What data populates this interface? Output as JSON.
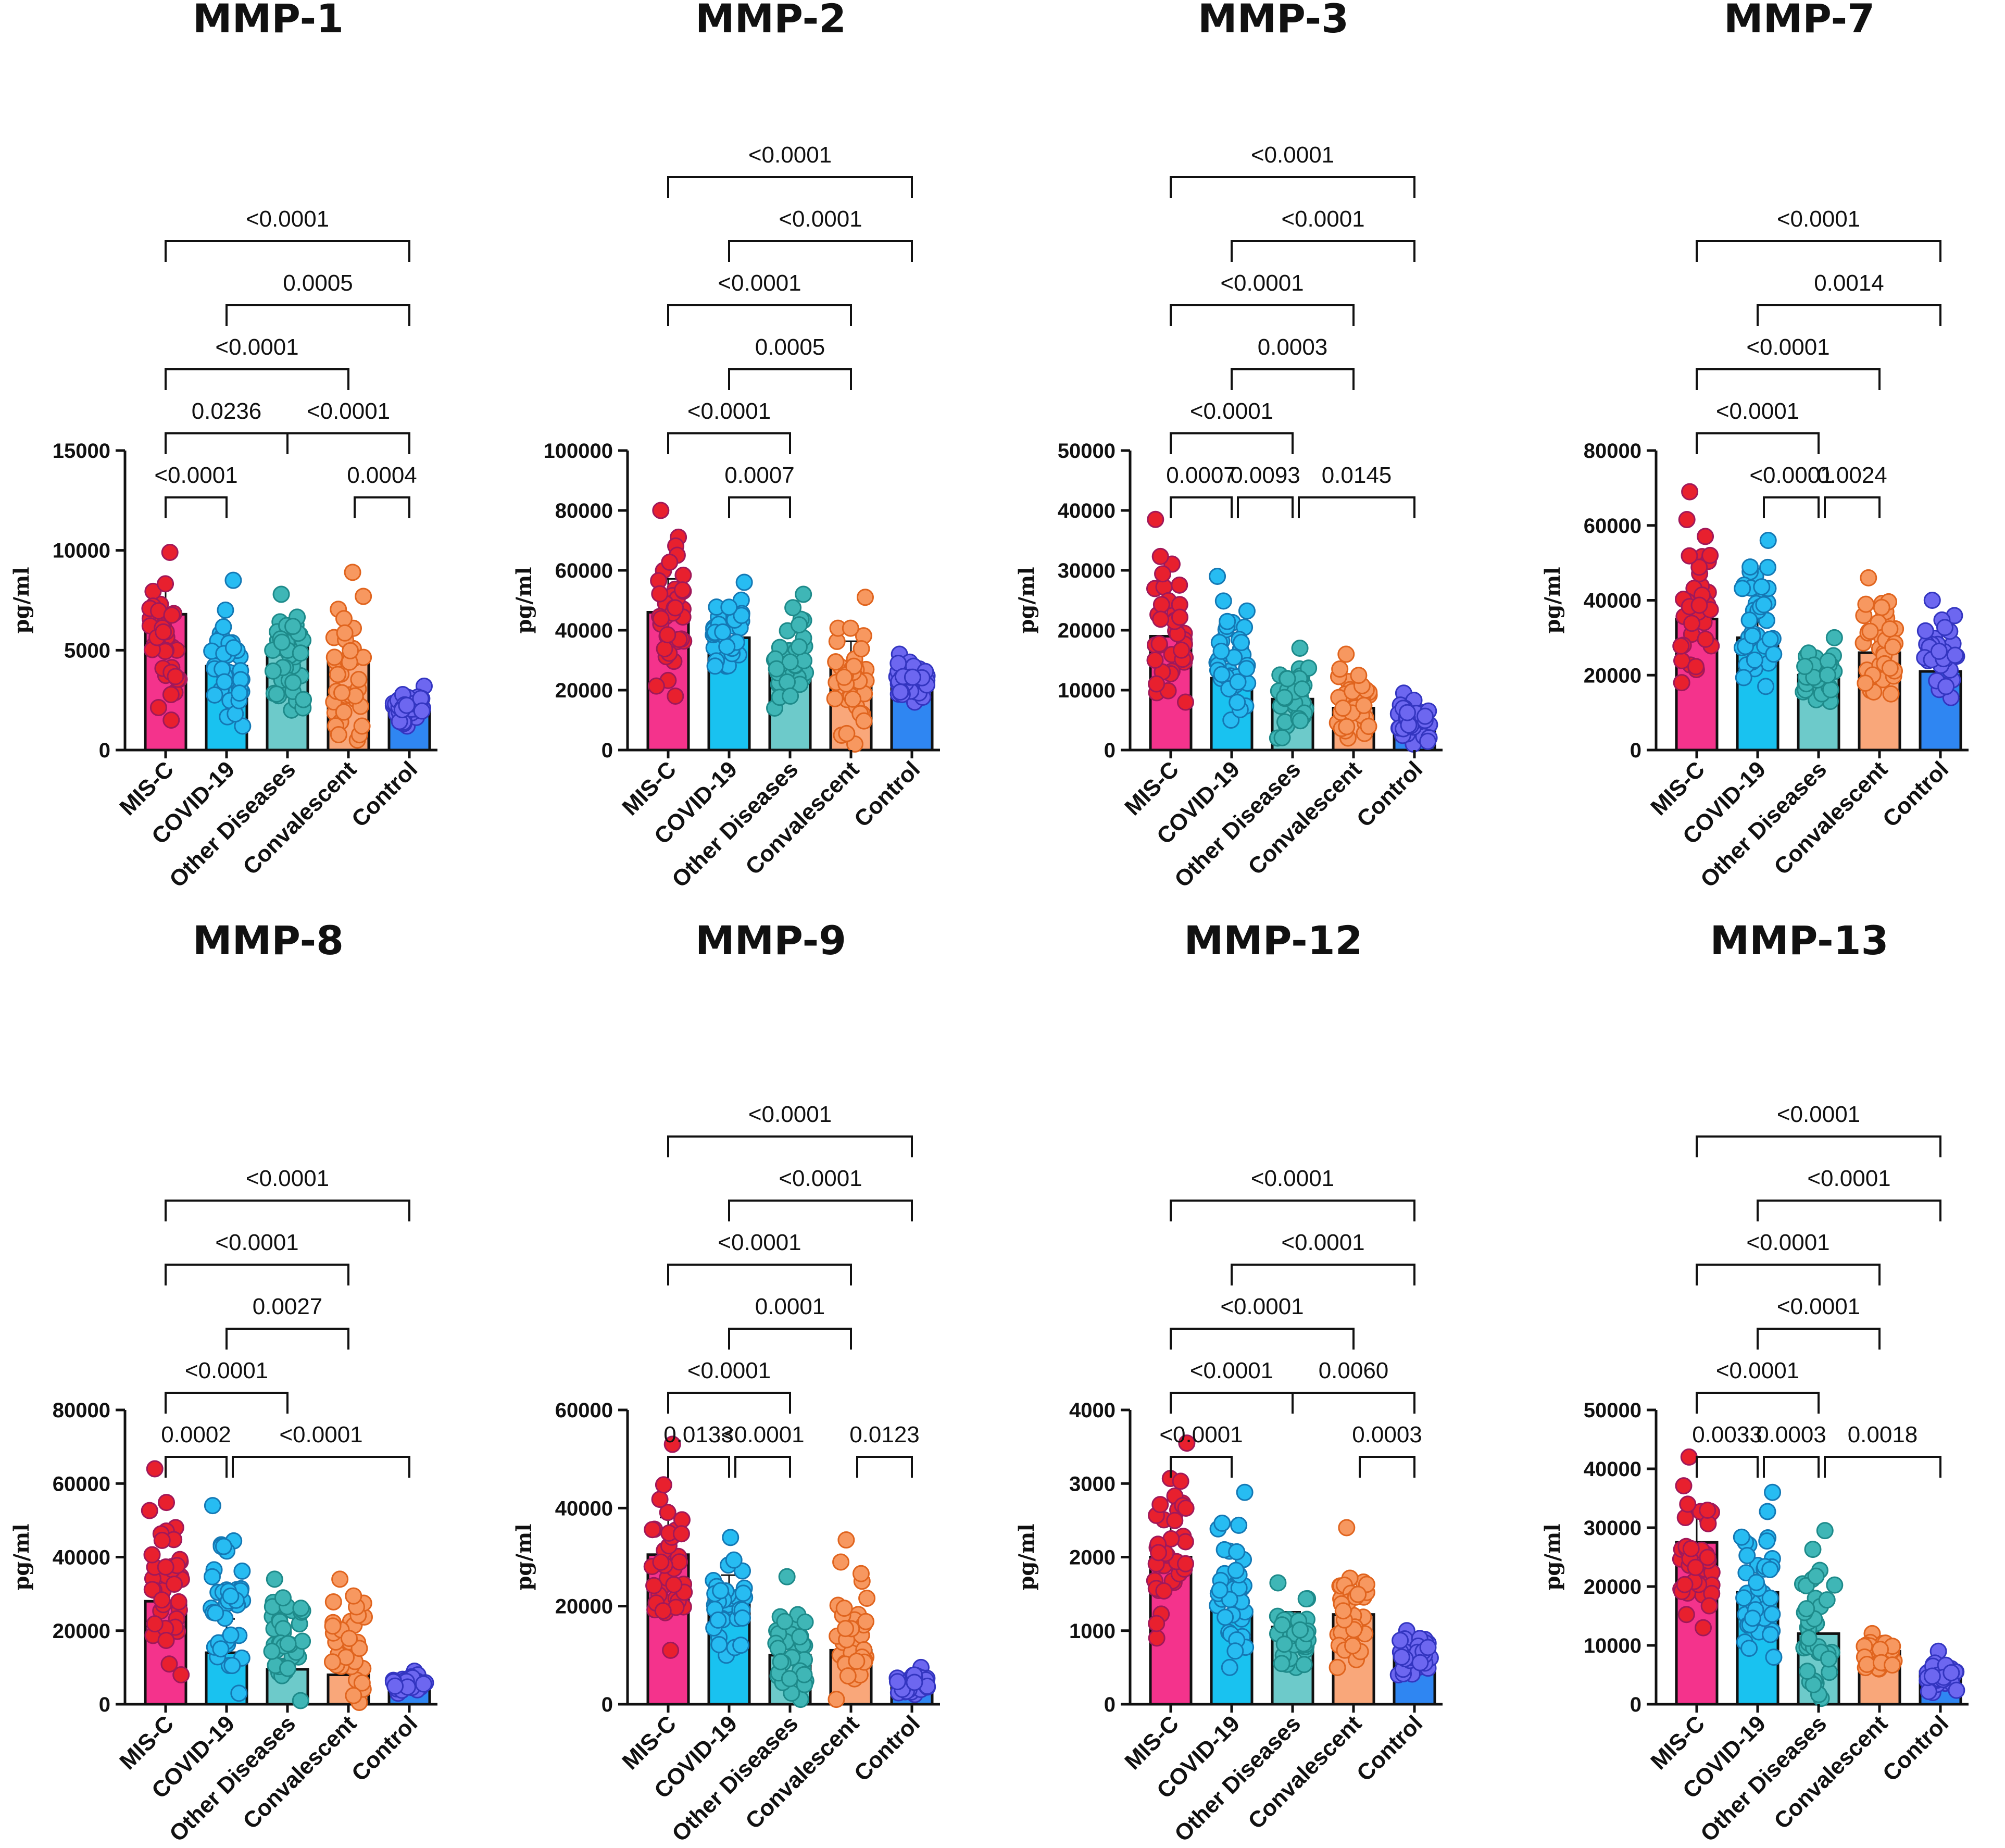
{
  "colors": {
    "MIS-C": {
      "bar": "#F4338C",
      "point": "#E8202E",
      "edge": "#A0185A"
    },
    "COVID-19": {
      "bar": "#19C2F0",
      "point": "#27BCF2",
      "edge": "#1478B4"
    },
    "Other Diseases": {
      "bar": "#6DCACA",
      "point": "#3FB6B6",
      "edge": "#1E8A8A"
    },
    "Convalescent": {
      "bar": "#F9A77A",
      "point": "#F79860",
      "edge": "#E0641E"
    },
    "Control": {
      "bar": "#2F86F2",
      "point": "#6D67F0",
      "edge": "#3335C0"
    }
  },
  "chart_data": [
    {
      "type": "bar",
      "title": "MMP-1",
      "ylabel": "pg/ml",
      "categories": [
        "MIS-C",
        "COVID-19",
        "Other Diseases",
        "Convalescent",
        "Control"
      ],
      "values": [
        6800,
        4200,
        5200,
        4400,
        2000
      ],
      "ranges": [
        [
          1500,
          9900
        ],
        [
          1200,
          8500
        ],
        [
          2000,
          7800
        ],
        [
          500,
          8900
        ],
        [
          1200,
          3200
        ]
      ],
      "ylim": [
        0,
        15000
      ],
      "yticks": [
        "0",
        "5000",
        "10000",
        "15000"
      ],
      "comparisons": [
        {
          "a": 0,
          "b": 4,
          "label": "<0.0001"
        },
        {
          "a": 1,
          "b": 4,
          "label": "0.0005"
        },
        {
          "a": 0,
          "b": 3,
          "label": "<0.0001"
        },
        {
          "a": 0,
          "b": 2,
          "label": "0.0236"
        },
        {
          "a": 2,
          "b": 4,
          "label": "<0.0001"
        },
        {
          "a": 0,
          "b": 1,
          "label": "<0.0001"
        },
        {
          "a": 3,
          "b": 4,
          "label": "0.0004"
        }
      ]
    },
    {
      "type": "bar",
      "title": "MMP-2",
      "ylabel": "pg/ml",
      "categories": [
        "MIS-C",
        "COVID-19",
        "Other Diseases",
        "Convalescent",
        "Control"
      ],
      "values": [
        46000,
        37500,
        27000,
        27500,
        22500
      ],
      "ranges": [
        [
          18000,
          80000
        ],
        [
          28000,
          56000
        ],
        [
          14000,
          52000
        ],
        [
          2000,
          51000
        ],
        [
          16000,
          32000
        ]
      ],
      "ylim": [
        0,
        100000
      ],
      "yticks": [
        "0",
        "20000",
        "40000",
        "60000",
        "80000",
        "100000"
      ],
      "comparisons": [
        {
          "a": 0,
          "b": 4,
          "label": "<0.0001"
        },
        {
          "a": 1,
          "b": 4,
          "label": "<0.0001"
        },
        {
          "a": 0,
          "b": 3,
          "label": "<0.0001"
        },
        {
          "a": 1,
          "b": 3,
          "label": "0.0005"
        },
        {
          "a": 0,
          "b": 2,
          "label": "<0.0001"
        },
        {
          "a": 1,
          "b": 2,
          "label": "0.0007"
        }
      ]
    },
    {
      "type": "bar",
      "title": "MMP-3",
      "ylabel": "pg/ml",
      "categories": [
        "MIS-C",
        "COVID-19",
        "Other Diseases",
        "Convalescent",
        "Control"
      ],
      "values": [
        19000,
        12000,
        8500,
        7000,
        4500
      ],
      "ranges": [
        [
          8000,
          38500
        ],
        [
          5000,
          29000
        ],
        [
          2000,
          17000
        ],
        [
          2000,
          16000
        ],
        [
          1000,
          9500
        ]
      ],
      "ylim": [
        0,
        50000
      ],
      "yticks": [
        "0",
        "10000",
        "20000",
        "30000",
        "40000",
        "50000"
      ],
      "comparisons": [
        {
          "a": 0,
          "b": 4,
          "label": "<0.0001"
        },
        {
          "a": 1,
          "b": 4,
          "label": "<0.0001"
        },
        {
          "a": 0,
          "b": 3,
          "label": "<0.0001"
        },
        {
          "a": 1,
          "b": 3,
          "label": "0.0003"
        },
        {
          "a": 0,
          "b": 2,
          "label": "<0.0001"
        },
        {
          "a": 1,
          "b": 2,
          "label": "0.0093"
        },
        {
          "a": 0,
          "b": 1,
          "label": "0.0007"
        },
        {
          "a": 2,
          "b": 4,
          "label": "0.0145"
        }
      ]
    },
    {
      "type": "bar",
      "title": "MMP-7",
      "ylabel": "pg/ml",
      "categories": [
        "MIS-C",
        "COVID-19",
        "Other Diseases",
        "Convalescent",
        "Control"
      ],
      "values": [
        35000,
        30000,
        20000,
        26000,
        21000
      ],
      "ranges": [
        [
          18000,
          69000
        ],
        [
          17000,
          56000
        ],
        [
          13000,
          30000
        ],
        [
          15000,
          46000
        ],
        [
          14000,
          40000
        ]
      ],
      "ylim": [
        0,
        80000
      ],
      "yticks": [
        "0",
        "20000",
        "40000",
        "60000",
        "80000"
      ],
      "comparisons": [
        {
          "a": 0,
          "b": 4,
          "label": "<0.0001"
        },
        {
          "a": 1,
          "b": 4,
          "label": "0.0014"
        },
        {
          "a": 0,
          "b": 3,
          "label": "<0.0001"
        },
        {
          "a": 0,
          "b": 2,
          "label": "<0.0001"
        },
        {
          "a": 2,
          "b": 3,
          "label": "0.0024"
        },
        {
          "a": 1,
          "b": 2,
          "label": "<0.0001"
        }
      ]
    },
    {
      "type": "bar",
      "title": "MMP-8",
      "ylabel": "pg/ml",
      "categories": [
        "MIS-C",
        "COVID-19",
        "Other Diseases",
        "Convalescent",
        "Control"
      ],
      "values": [
        28000,
        14000,
        9500,
        8000,
        6000
      ],
      "ranges": [
        [
          8000,
          64000
        ],
        [
          3000,
          54000
        ],
        [
          1000,
          34000
        ],
        [
          500,
          34000
        ],
        [
          3000,
          9000
        ]
      ],
      "ylim": [
        0,
        80000
      ],
      "yticks": [
        "0",
        "20000",
        "40000",
        "60000",
        "80000"
      ],
      "comparisons": [
        {
          "a": 0,
          "b": 4,
          "label": "<0.0001"
        },
        {
          "a": 0,
          "b": 3,
          "label": "<0.0001"
        },
        {
          "a": 1,
          "b": 3,
          "label": "0.0027"
        },
        {
          "a": 0,
          "b": 2,
          "label": "<0.0001"
        },
        {
          "a": 0,
          "b": 1,
          "label": "0.0002"
        },
        {
          "a": 1,
          "b": 4,
          "label": "<0.0001"
        }
      ]
    },
    {
      "type": "bar",
      "title": "MMP-9",
      "ylabel": "pg/ml",
      "categories": [
        "MIS-C",
        "COVID-19",
        "Other Diseases",
        "Convalescent",
        "Control"
      ],
      "values": [
        30500,
        22000,
        10000,
        11000,
        5000
      ],
      "ranges": [
        [
          11000,
          53000
        ],
        [
          10000,
          34000
        ],
        [
          1000,
          26000
        ],
        [
          1000,
          33500
        ],
        [
          2000,
          7500
        ]
      ],
      "ylim": [
        0,
        60000
      ],
      "yticks": [
        "0",
        "20000",
        "40000",
        "60000"
      ],
      "comparisons": [
        {
          "a": 0,
          "b": 4,
          "label": "<0.0001"
        },
        {
          "a": 1,
          "b": 4,
          "label": "<0.0001"
        },
        {
          "a": 0,
          "b": 3,
          "label": "<0.0001"
        },
        {
          "a": 1,
          "b": 3,
          "label": "0.0001"
        },
        {
          "a": 0,
          "b": 2,
          "label": "<0.0001"
        },
        {
          "a": 1,
          "b": 2,
          "label": "<0.0001"
        },
        {
          "a": 0,
          "b": 1,
          "label": "0.0133"
        },
        {
          "a": 3,
          "b": 4,
          "label": "0.0123"
        }
      ]
    },
    {
      "type": "bar",
      "title": "MMP-12",
      "ylabel": "pg/ml",
      "categories": [
        "MIS-C",
        "COVID-19",
        "Other Diseases",
        "Convalescent",
        "Control"
      ],
      "values": [
        2000,
        1280,
        1050,
        1220,
        750
      ],
      "ranges": [
        [
          900,
          3550
        ],
        [
          500,
          2880
        ],
        [
          500,
          1650
        ],
        [
          500,
          2400
        ],
        [
          400,
          1000
        ]
      ],
      "ylim": [
        0,
        4000
      ],
      "yticks": [
        "0",
        "1000",
        "2000",
        "3000",
        "4000"
      ],
      "comparisons": [
        {
          "a": 0,
          "b": 4,
          "label": "<0.0001"
        },
        {
          "a": 1,
          "b": 4,
          "label": "<0.0001"
        },
        {
          "a": 0,
          "b": 3,
          "label": "<0.0001"
        },
        {
          "a": 0,
          "b": 2,
          "label": "<0.0001"
        },
        {
          "a": 2,
          "b": 4,
          "label": "0.0060"
        },
        {
          "a": 0,
          "b": 1,
          "label": "<0.0001"
        },
        {
          "a": 3,
          "b": 4,
          "label": "0.0003"
        }
      ]
    },
    {
      "type": "bar",
      "title": "MMP-13",
      "ylabel": "pg/ml",
      "categories": [
        "MIS-C",
        "COVID-19",
        "Other Diseases",
        "Convalescent",
        "Control"
      ],
      "values": [
        27500,
        19000,
        12000,
        9000,
        5500
      ],
      "ranges": [
        [
          13000,
          42000
        ],
        [
          8000,
          36000
        ],
        [
          1000,
          29500
        ],
        [
          6000,
          12000
        ],
        [
          2000,
          9000
        ]
      ],
      "ylim": [
        0,
        50000
      ],
      "yticks": [
        "0",
        "10000",
        "20000",
        "30000",
        "40000",
        "50000"
      ],
      "comparisons": [
        {
          "a": 0,
          "b": 4,
          "label": "<0.0001"
        },
        {
          "a": 1,
          "b": 4,
          "label": "<0.0001"
        },
        {
          "a": 0,
          "b": 3,
          "label": "<0.0001"
        },
        {
          "a": 1,
          "b": 3,
          "label": "<0.0001"
        },
        {
          "a": 0,
          "b": 2,
          "label": "<0.0001"
        },
        {
          "a": 1,
          "b": 2,
          "label": "0.0003"
        },
        {
          "a": 0,
          "b": 1,
          "label": "0.0033"
        },
        {
          "a": 2,
          "b": 4,
          "label": "0.0018"
        }
      ]
    }
  ]
}
